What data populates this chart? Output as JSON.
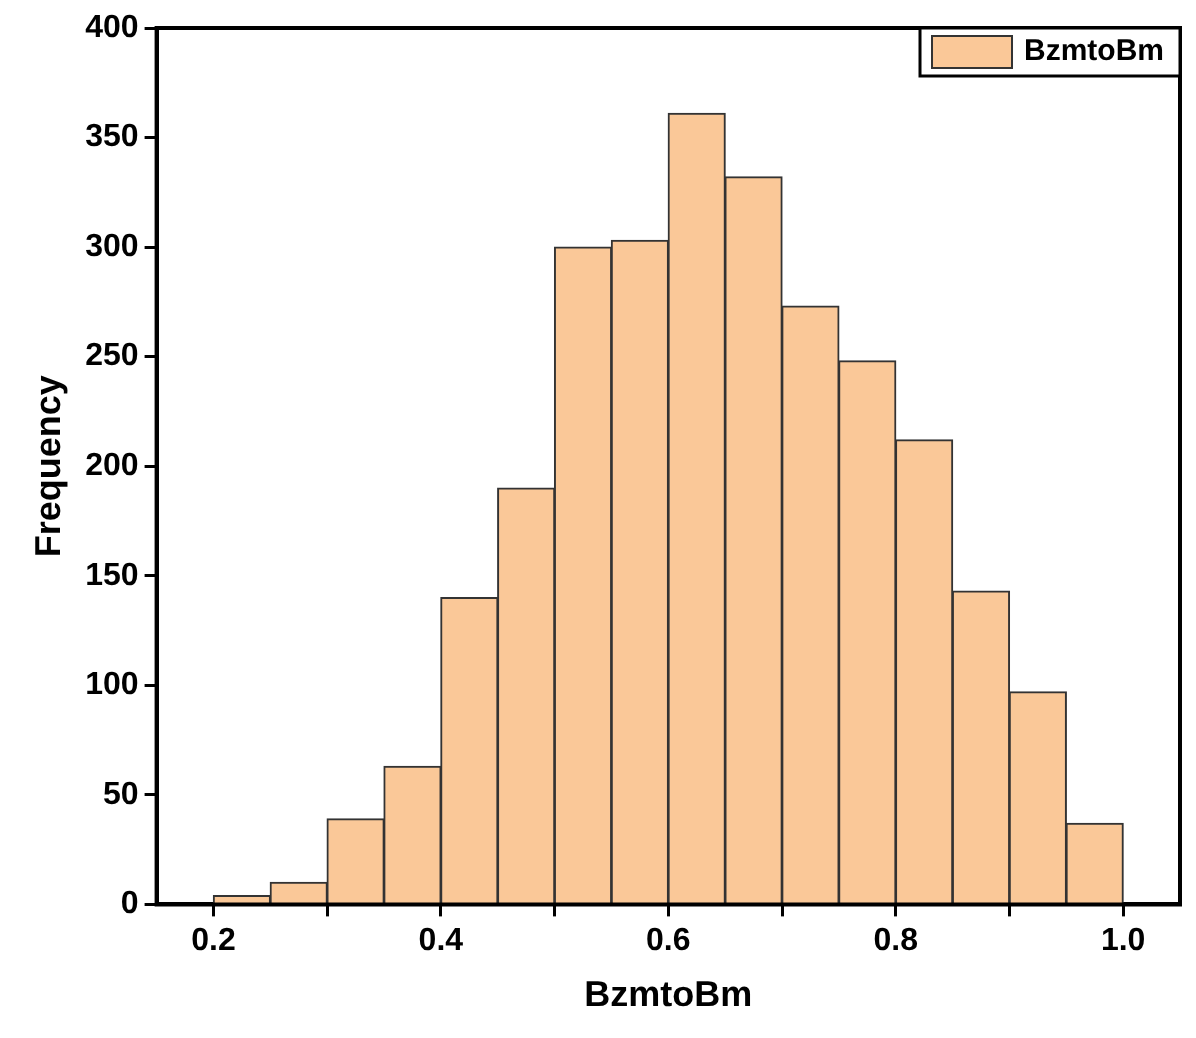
{
  "chart_data": {
    "type": "histogram",
    "xlabel": "BzmtoBm",
    "ylabel": "Frequency",
    "bins": [
      0.2,
      0.25,
      0.3,
      0.35,
      0.4,
      0.45,
      0.5,
      0.55,
      0.6,
      0.65,
      0.7,
      0.75,
      0.8,
      0.85,
      0.9,
      0.95,
      1.0
    ],
    "series": [
      {
        "name": "BzmtoBm",
        "color": "#fac898",
        "values": [
          4,
          10,
          39,
          63,
          140,
          190,
          300,
          303,
          361,
          332,
          273,
          248,
          212,
          143,
          97,
          37
        ]
      }
    ],
    "xlim": [
      0.15,
      1.05
    ],
    "xticks": [
      {
        "value": 0.2,
        "label": "0.2"
      },
      {
        "value": 0.3,
        "label": null
      },
      {
        "value": 0.4,
        "label": "0.4"
      },
      {
        "value": 0.5,
        "label": null
      },
      {
        "value": 0.6,
        "label": "0.6"
      },
      {
        "value": 0.7,
        "label": null
      },
      {
        "value": 0.8,
        "label": "0.8"
      },
      {
        "value": 0.9,
        "label": null
      },
      {
        "value": 1.0,
        "label": "1.0"
      }
    ],
    "ylim": [
      0,
      400
    ],
    "yticks": [
      0,
      50,
      100,
      150,
      200,
      250,
      300,
      350,
      400
    ],
    "grid": false,
    "legend": "top right"
  }
}
